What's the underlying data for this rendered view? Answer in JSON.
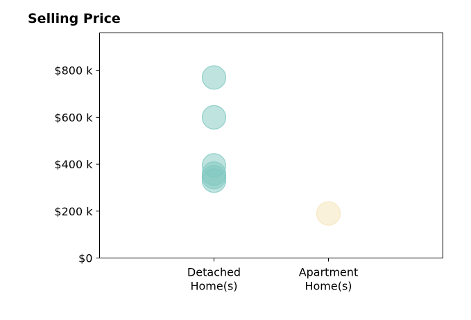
{
  "chart_data": {
    "type": "scatter",
    "title": "Selling Price",
    "categories": [
      "Detached\nHome(s)",
      "Apartment\nHome(s)"
    ],
    "y_tick_labels": [
      "$0",
      "$200 k",
      "$400 k",
      "$600 k",
      "$800 k"
    ],
    "y_ticks": [
      0,
      200000,
      400000,
      600000,
      800000
    ],
    "ylim": [
      0,
      960000
    ],
    "grid": false,
    "series": [
      {
        "category": "Detached\nHome(s)",
        "color": "#7fc8c0",
        "values": [
          770000,
          600000,
          395000,
          360000,
          345000,
          330000
        ]
      },
      {
        "category": "Apartment\nHome(s)",
        "color": "#f5e3b8",
        "values": [
          190000
        ]
      }
    ]
  }
}
